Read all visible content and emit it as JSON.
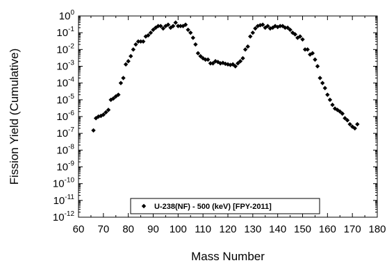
{
  "chart_data": {
    "type": "scatter",
    "xlabel": "Mass Number",
    "ylabel": "Fission Yield (Cumulative)",
    "yscale": "log",
    "xlim": [
      60,
      180
    ],
    "ylim": [
      1e-12,
      1
    ],
    "x_ticks": [
      60,
      70,
      80,
      90,
      100,
      110,
      120,
      130,
      140,
      150,
      160,
      170,
      180
    ],
    "y_tick_exponents": [
      0,
      -1,
      -2,
      -3,
      -4,
      -5,
      -6,
      -7,
      -8,
      -9,
      -10,
      -11,
      -12
    ],
    "y_tick_base": "10",
    "grid": false,
    "legend_position": "bottom-center",
    "series": [
      {
        "name": "U-238(NF) - 500 (keV) [FPY-2011]",
        "marker": "diamond",
        "color": "#000000",
        "x": [
          66,
          67,
          68,
          69,
          70,
          71,
          72,
          73,
          74,
          75,
          76,
          77,
          78,
          79,
          80,
          81,
          82,
          83,
          84,
          85,
          86,
          87,
          88,
          89,
          90,
          91,
          92,
          93,
          94,
          95,
          96,
          97,
          98,
          99,
          100,
          101,
          102,
          103,
          104,
          105,
          106,
          107,
          108,
          109,
          110,
          111,
          112,
          113,
          114,
          115,
          116,
          117,
          118,
          119,
          120,
          121,
          122,
          123,
          124,
          125,
          126,
          127,
          128,
          129,
          130,
          131,
          132,
          133,
          134,
          135,
          136,
          137,
          138,
          139,
          140,
          141,
          142,
          143,
          144,
          145,
          146,
          147,
          148,
          149,
          150,
          151,
          152,
          153,
          154,
          155,
          156,
          157,
          158,
          159,
          160,
          161,
          162,
          163,
          164,
          165,
          166,
          167,
          168,
          169,
          170,
          171,
          172
        ],
        "y": [
          1.5e-07,
          8e-07,
          1e-06,
          1.1e-06,
          1.3e-06,
          1.8e-06,
          2.5e-06,
          1e-05,
          1.2e-05,
          1.6e-05,
          2e-05,
          0.0001,
          0.0002,
          0.0013,
          0.002,
          0.004,
          0.01,
          0.02,
          0.03,
          0.03,
          0.03,
          0.06,
          0.07,
          0.1,
          0.15,
          0.2,
          0.25,
          0.25,
          0.18,
          0.25,
          0.3,
          0.2,
          0.25,
          0.4,
          0.25,
          0.25,
          0.25,
          0.3,
          0.15,
          0.1,
          0.05,
          0.02,
          0.006,
          0.004,
          0.003,
          0.0025,
          0.0025,
          0.0015,
          0.0015,
          0.002,
          0.0018,
          0.0015,
          0.0016,
          0.0014,
          0.0013,
          0.0012,
          0.0013,
          0.001,
          0.0015,
          0.002,
          0.003,
          0.01,
          0.015,
          0.06,
          0.1,
          0.18,
          0.25,
          0.28,
          0.3,
          0.2,
          0.25,
          0.18,
          0.2,
          0.25,
          0.22,
          0.25,
          0.25,
          0.2,
          0.2,
          0.15,
          0.1,
          0.08,
          0.05,
          0.06,
          0.04,
          0.01,
          0.01,
          0.005,
          0.006,
          0.0025,
          0.001,
          0.0002,
          0.0001,
          5e-05,
          2e-05,
          1e-05,
          5e-06,
          3e-06,
          2.5e-06,
          2e-06,
          1.5e-06,
          8e-07,
          6e-07,
          3.5e-07,
          2.5e-07,
          2e-07,
          3.5e-07
        ]
      }
    ]
  }
}
